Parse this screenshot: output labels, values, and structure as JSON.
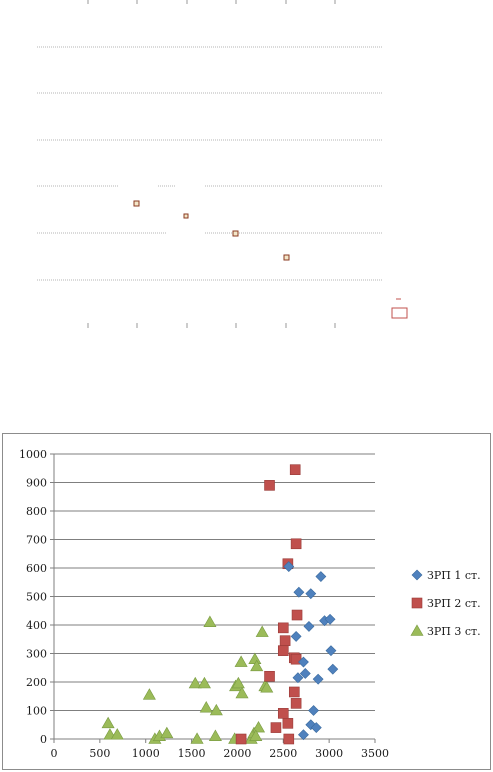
{
  "chart_data": {
    "type": "scatter",
    "title": "",
    "xlabel": "",
    "ylabel": "",
    "xlim": [
      0,
      3500
    ],
    "ylim": [
      0,
      1000
    ],
    "x_ticks": [
      0,
      500,
      1000,
      1500,
      2000,
      2500,
      3000,
      3500
    ],
    "y_ticks": [
      0,
      100,
      200,
      300,
      400,
      500,
      600,
      700,
      800,
      900,
      1000
    ],
    "grid": "horizontal",
    "legend_position": "right",
    "series": [
      {
        "name": "ЗРП 1 ст.",
        "marker": "diamond",
        "color": "#4f81bd",
        "points": [
          [
            2560,
            605
          ],
          [
            2640,
            360
          ],
          [
            2660,
            215
          ],
          [
            2670,
            515
          ],
          [
            2720,
            270
          ],
          [
            2740,
            230
          ],
          [
            2780,
            395
          ],
          [
            2800,
            510
          ],
          [
            2830,
            100
          ],
          [
            2880,
            210
          ],
          [
            2910,
            570
          ],
          [
            2950,
            415
          ],
          [
            3010,
            420
          ],
          [
            3020,
            310
          ],
          [
            3040,
            245
          ],
          [
            2720,
            15
          ],
          [
            2800,
            50
          ],
          [
            2860,
            40
          ]
        ]
      },
      {
        "name": "ЗРП 2 ст.",
        "marker": "square",
        "color": "#c0504d",
        "points": [
          [
            2350,
            890
          ],
          [
            2630,
            945
          ],
          [
            2550,
            615
          ],
          [
            2640,
            685
          ],
          [
            2650,
            435
          ],
          [
            2500,
            390
          ],
          [
            2520,
            345
          ],
          [
            2500,
            310
          ],
          [
            2620,
            285
          ],
          [
            2640,
            280
          ],
          [
            2350,
            220
          ],
          [
            2620,
            165
          ],
          [
            2640,
            125
          ],
          [
            2500,
            90
          ],
          [
            2550,
            55
          ],
          [
            2560,
            0
          ],
          [
            2420,
            40
          ],
          [
            2040,
            0
          ]
        ]
      },
      {
        "name": "ЗРП 3 ст.",
        "marker": "triangle",
        "color": "#9bbb59",
        "points": [
          [
            590,
            55
          ],
          [
            610,
            15
          ],
          [
            690,
            15
          ],
          [
            1040,
            155
          ],
          [
            1100,
            0
          ],
          [
            1150,
            10
          ],
          [
            1230,
            20
          ],
          [
            1540,
            195
          ],
          [
            1560,
            0
          ],
          [
            1640,
            195
          ],
          [
            1660,
            110
          ],
          [
            1700,
            410
          ],
          [
            1770,
            100
          ],
          [
            1760,
            10
          ],
          [
            1970,
            0
          ],
          [
            1980,
            185
          ],
          [
            2010,
            195
          ],
          [
            2040,
            270
          ],
          [
            2050,
            160
          ],
          [
            2150,
            0
          ],
          [
            2180,
            20
          ],
          [
            2190,
            280
          ],
          [
            2210,
            255
          ],
          [
            2230,
            40
          ],
          [
            2270,
            375
          ],
          [
            2300,
            185
          ],
          [
            2320,
            180
          ],
          [
            2200,
            10
          ]
        ]
      }
    ]
  }
}
